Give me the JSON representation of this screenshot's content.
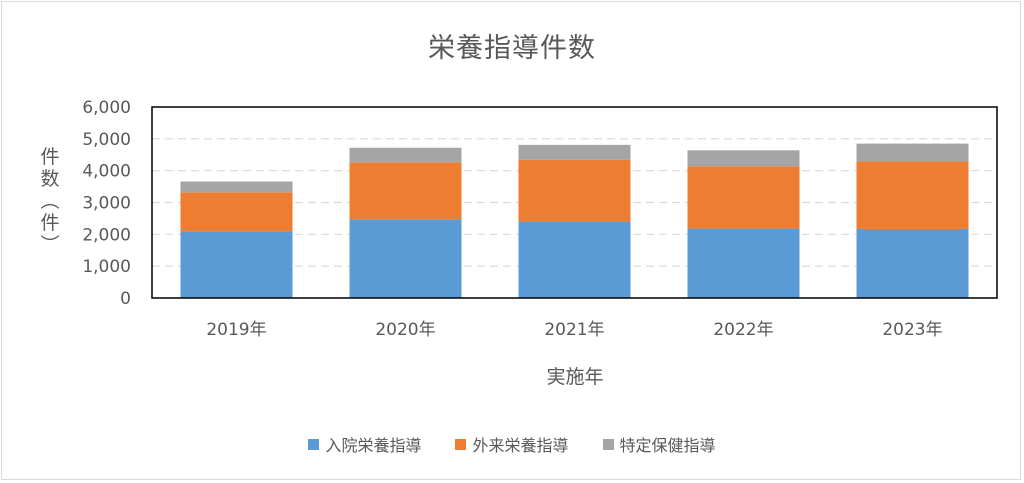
{
  "chart_data": {
    "type": "bar",
    "stacked": true,
    "title": "栄養指導件数",
    "ylabel": "件数（件）",
    "xlabel": "実施年",
    "ylim": [
      0,
      6000
    ],
    "yticks": [
      "0",
      "1,000",
      "2,000",
      "3,000",
      "4,000",
      "5,000",
      "6,000"
    ],
    "categories": [
      "2019年",
      "2020年",
      "2021年",
      "2022年",
      "2023年"
    ],
    "series": [
      {
        "name": "入院栄養指導",
        "color": "#5b9bd5",
        "values": [
          2100,
          2470,
          2400,
          2180,
          2170
        ]
      },
      {
        "name": "外来栄養指導",
        "color": "#ed7d31",
        "values": [
          1220,
          1790,
          1940,
          1960,
          2120
        ]
      },
      {
        "name": "特定保健指導",
        "color": "#a5a5a5",
        "values": [
          340,
          460,
          470,
          500,
          560
        ]
      }
    ],
    "grid": true,
    "legend": "bottom"
  }
}
